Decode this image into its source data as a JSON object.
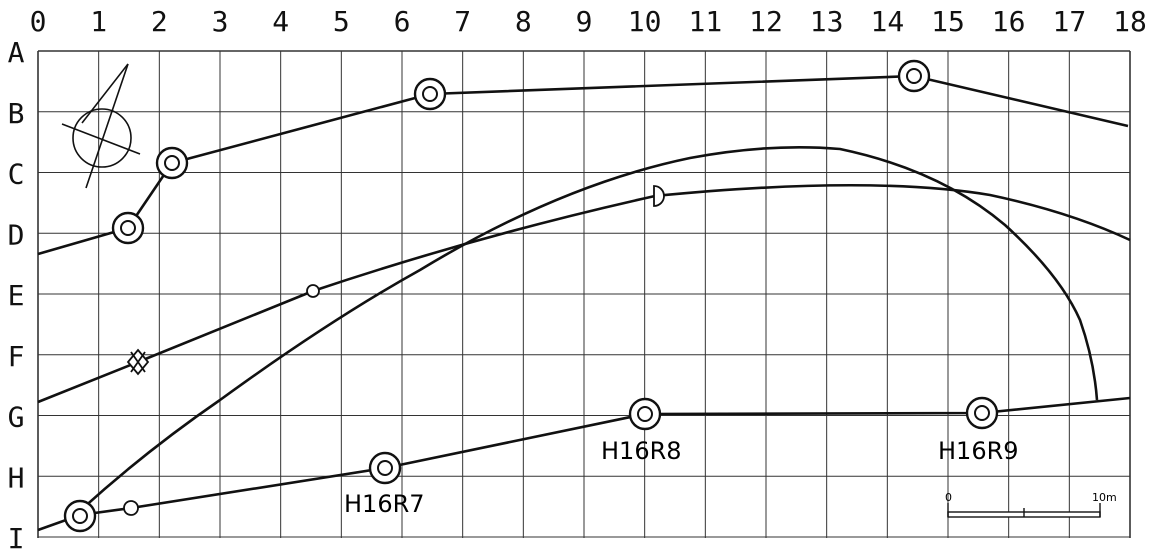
{
  "grid": {
    "columns": [
      "0",
      "1",
      "2",
      "3",
      "4",
      "5",
      "6",
      "7",
      "8",
      "9",
      "10",
      "11",
      "12",
      "13",
      "14",
      "15",
      "16",
      "17",
      "18"
    ],
    "rows": [
      "A",
      "B",
      "C",
      "D",
      "E",
      "F",
      "G",
      "H",
      "I"
    ]
  },
  "stations": [
    {
      "label": "H16R7"
    },
    {
      "label": "H16R8"
    },
    {
      "label": "H16R9"
    }
  ],
  "scale_bar": {
    "start_label": "0",
    "end_label": "10m"
  },
  "colors": {
    "ink": "#111111",
    "grid": "#333333",
    "background": "#ffffff"
  }
}
